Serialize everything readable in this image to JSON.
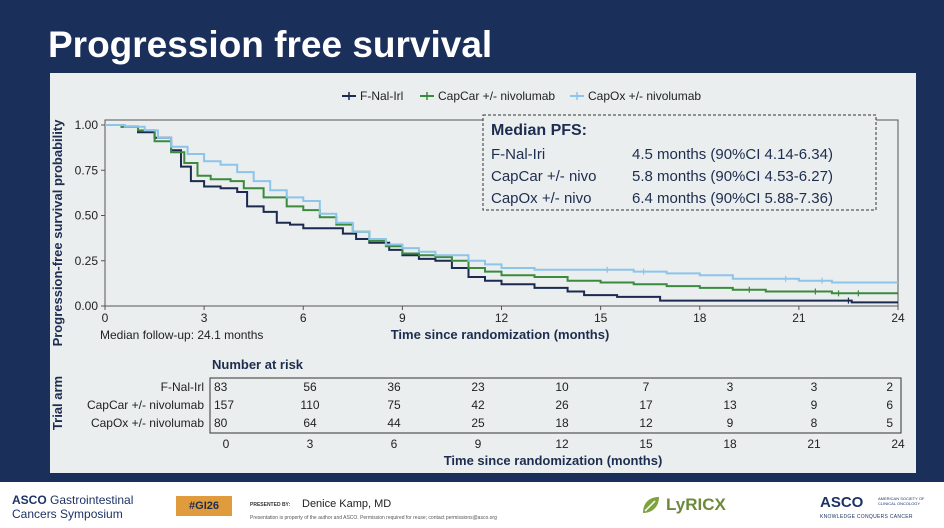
{
  "slide": {
    "title": "Progression free survival"
  },
  "chart_data": {
    "type": "line",
    "subtype": "kaplan-meier",
    "ylabel": "Progression-free survival probability",
    "xlabel": "Time since randomization (months)",
    "xlim": [
      0,
      24
    ],
    "ylim": [
      0,
      1
    ],
    "x_ticks": [
      0,
      3,
      6,
      9,
      12,
      15,
      18,
      21,
      24
    ],
    "y_ticks": [
      0,
      0.25,
      0.5,
      0.75,
      1
    ],
    "x_tick_labels": [
      "0",
      "3",
      "6",
      "9",
      "12",
      "15",
      "18",
      "21",
      "24"
    ],
    "y_tick_labels": [
      "0.00",
      "0.25",
      "0.50",
      "0.75",
      "1.00"
    ],
    "grid": false,
    "legend_position": "top",
    "series": [
      {
        "name": "F-Nal-Irl",
        "color": "#1b2a4e",
        "points": [
          [
            0,
            1
          ],
          [
            0.5,
            0.99
          ],
          [
            1,
            0.96
          ],
          [
            1.5,
            0.93
          ],
          [
            2,
            0.86
          ],
          [
            2.3,
            0.77
          ],
          [
            2.6,
            0.69
          ],
          [
            3,
            0.66
          ],
          [
            3.5,
            0.65
          ],
          [
            4,
            0.63
          ],
          [
            4.3,
            0.55
          ],
          [
            4.8,
            0.52
          ],
          [
            5.2,
            0.46
          ],
          [
            5.6,
            0.45
          ],
          [
            6,
            0.43
          ],
          [
            7,
            0.43
          ],
          [
            7.2,
            0.4
          ],
          [
            7.6,
            0.37
          ],
          [
            8,
            0.35
          ],
          [
            8.6,
            0.31
          ],
          [
            9,
            0.28
          ],
          [
            9.5,
            0.26
          ],
          [
            10,
            0.25
          ],
          [
            10.5,
            0.21
          ],
          [
            11,
            0.16
          ],
          [
            11.5,
            0.14
          ],
          [
            12,
            0.12
          ],
          [
            13,
            0.1
          ],
          [
            14,
            0.08
          ],
          [
            14.5,
            0.06
          ],
          [
            15.5,
            0.05
          ],
          [
            16.5,
            0.05
          ],
          [
            16.8,
            0.03
          ],
          [
            21,
            0.03
          ],
          [
            22.5,
            0.03
          ],
          [
            22.6,
            0.02
          ],
          [
            24,
            0.02
          ]
        ],
        "censor_x": [
          22.5
        ]
      },
      {
        "name": "CapCar +/- nivolumab",
        "color": "#3b8a3e",
        "points": [
          [
            0,
            1
          ],
          [
            0.5,
            0.99
          ],
          [
            1,
            0.97
          ],
          [
            1.5,
            0.91
          ],
          [
            2,
            0.85
          ],
          [
            2.4,
            0.79
          ],
          [
            2.8,
            0.72
          ],
          [
            3.2,
            0.7
          ],
          [
            3.8,
            0.69
          ],
          [
            4.2,
            0.65
          ],
          [
            4.8,
            0.6
          ],
          [
            5.5,
            0.55
          ],
          [
            6,
            0.53
          ],
          [
            6.5,
            0.49
          ],
          [
            7,
            0.45
          ],
          [
            7.5,
            0.41
          ],
          [
            8,
            0.36
          ],
          [
            8.5,
            0.33
          ],
          [
            9,
            0.29
          ],
          [
            9.5,
            0.28
          ],
          [
            10,
            0.27
          ],
          [
            10.5,
            0.25
          ],
          [
            11,
            0.21
          ],
          [
            11.5,
            0.19
          ],
          [
            12,
            0.17
          ],
          [
            13,
            0.16
          ],
          [
            14,
            0.14
          ],
          [
            15,
            0.13
          ],
          [
            16,
            0.12
          ],
          [
            17,
            0.11
          ],
          [
            18,
            0.1
          ],
          [
            19,
            0.09
          ],
          [
            20,
            0.08
          ],
          [
            22,
            0.07
          ],
          [
            24,
            0.07
          ]
        ],
        "censor_x": [
          19.5,
          21.5,
          22.2,
          22.8
        ]
      },
      {
        "name": "CapOx +/- nivolumab",
        "color": "#8cc4ea",
        "points": [
          [
            0,
            1
          ],
          [
            0.6,
            0.99
          ],
          [
            1.2,
            0.97
          ],
          [
            1.6,
            0.93
          ],
          [
            2,
            0.88
          ],
          [
            2.5,
            0.84
          ],
          [
            3,
            0.8
          ],
          [
            3.5,
            0.78
          ],
          [
            4,
            0.74
          ],
          [
            4.5,
            0.69
          ],
          [
            5,
            0.64
          ],
          [
            5.5,
            0.6
          ],
          [
            6,
            0.58
          ],
          [
            6.5,
            0.51
          ],
          [
            7,
            0.46
          ],
          [
            7.5,
            0.41
          ],
          [
            8,
            0.37
          ],
          [
            8.5,
            0.34
          ],
          [
            9,
            0.32
          ],
          [
            9.5,
            0.3
          ],
          [
            10,
            0.28
          ],
          [
            11,
            0.25
          ],
          [
            11.5,
            0.23
          ],
          [
            12,
            0.21
          ],
          [
            13,
            0.2
          ],
          [
            14,
            0.2
          ],
          [
            15,
            0.2
          ],
          [
            16,
            0.19
          ],
          [
            17,
            0.18
          ],
          [
            18,
            0.17
          ],
          [
            19,
            0.15
          ],
          [
            20,
            0.15
          ],
          [
            21,
            0.14
          ],
          [
            22,
            0.13
          ],
          [
            24,
            0.13
          ]
        ],
        "censor_x": [
          15.2,
          16.3,
          20.6,
          21.7
        ]
      }
    ],
    "median_box": {
      "title": "Median PFS:",
      "rows": [
        {
          "arm": "F-Nal-Iri",
          "value": "4.5 months (90%CI 4.14-6.34)"
        },
        {
          "arm": "CapCar +/- nivo",
          "value": "5.8 months (90%CI 4.53-6.27)"
        },
        {
          "arm": "CapOx +/- nivo",
          "value": "6.4 months (90%CI 5.88-7.36)"
        }
      ]
    },
    "followup_note": "Median follow-up: 24.1 months",
    "risk_table": {
      "title": "Number at risk",
      "side_label": "Trial arm",
      "xlabel": "Time since randomization (months)",
      "times": [
        0,
        3,
        6,
        9,
        12,
        15,
        18,
        21,
        24
      ],
      "rows": [
        {
          "label": "F-Nal-Irl",
          "values": [
            83,
            56,
            36,
            23,
            10,
            7,
            3,
            3,
            2
          ]
        },
        {
          "label": "CapCar +/- nivolumab",
          "values": [
            157,
            110,
            75,
            42,
            26,
            17,
            13,
            9,
            6
          ]
        },
        {
          "label": "CapOx +/- nivolumab",
          "values": [
            80,
            64,
            44,
            25,
            18,
            12,
            9,
            8,
            5
          ]
        }
      ]
    }
  },
  "footer": {
    "asco_line1": "ASCO",
    "asco_line1_rest": "Gastrointestinal",
    "asco_line2": "Cancers Symposium",
    "hashtag": "#GI26",
    "presented_by_label": "PRESENTED BY:",
    "presenter": "Denice Kamp, MD",
    "notice": "Presentation is property of the author and ASCO. Permission required for reuse; contact permissions@asco.org",
    "lyricx": "LyRICX",
    "asco_right": "ASCO",
    "asco_society": "AMERICAN SOCIETY OF CLINICAL ONCOLOGY",
    "asco_tagline": "KNOWLEDGE CONQUERS CANCER"
  }
}
